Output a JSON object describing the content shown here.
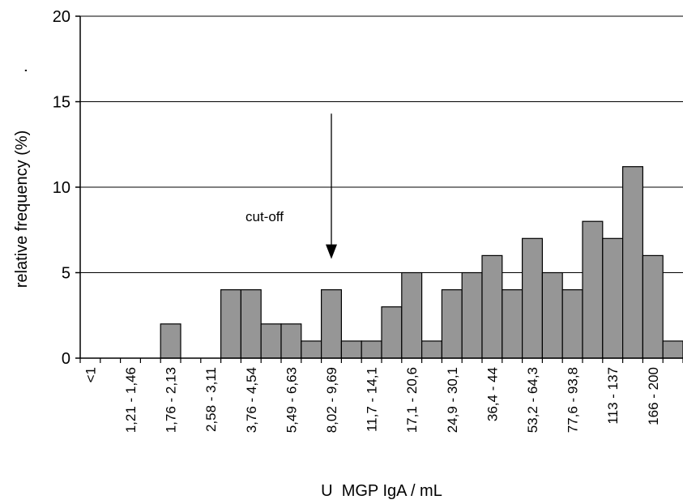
{
  "chart_data": {
    "type": "bar",
    "title": "",
    "xlabel": "U  MGP IgA / mL",
    "ylabel": "relative frequency (%)",
    "ylabel_suffix": ".",
    "ylim": [
      0,
      20
    ],
    "yticks": [
      0,
      5,
      10,
      15,
      20
    ],
    "grid": true,
    "bar_color": "#969696",
    "tick_labels": [
      "<1",
      "1,21 - 1,46",
      "1,76 - 2,13",
      "2,58 - 3,11",
      "3,76 - 4,54",
      "5,49 - 6,63",
      "8,02 - 9,69",
      "11,7 - 14,1",
      "17,1 - 20,6",
      "24,9 - 30,1",
      "36,4 - 44",
      "53,2 - 64,3",
      "77,6 - 93,8",
      "113 - 137",
      "166 - 200"
    ],
    "values": [
      0,
      0,
      0,
      0,
      2,
      0,
      0,
      4,
      4,
      2,
      2,
      1,
      4,
      1,
      1,
      3,
      5,
      1,
      4,
      5,
      6,
      4,
      7,
      5,
      4,
      8,
      7,
      11.2,
      6,
      1
    ],
    "annotations": [
      {
        "text": "cut-off",
        "arrow_at_bin": 12,
        "arrow_from_y": 14.3,
        "arrow_to_y": 5.8
      }
    ]
  }
}
